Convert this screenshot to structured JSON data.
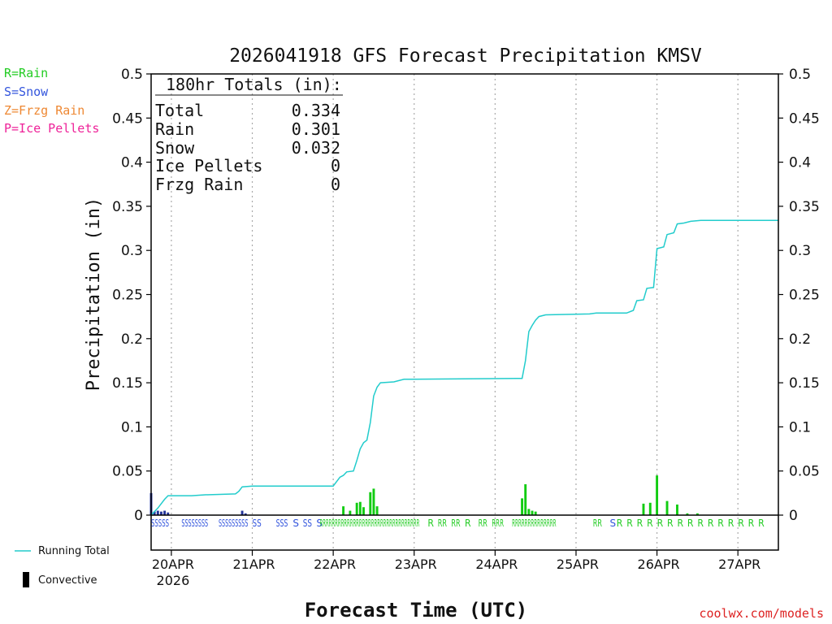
{
  "chart_data": {
    "type": "bar",
    "title": "2026041918 GFS Forecast Precipitation KMSV",
    "xlabel": "Forecast Time (UTC)",
    "ylabel": "Precipitation (in)",
    "ylim": [
      0,
      0.5
    ],
    "y_ticks": [
      "0",
      "0.05",
      "0.1",
      "0.15",
      "0.2",
      "0.25",
      "0.3",
      "0.35",
      "0.4",
      "0.45",
      "0.5"
    ],
    "x_range_hours": [
      0,
      186
    ],
    "x_ticks": [
      {
        "label": "20APR",
        "hour": 6,
        "sub": "2026"
      },
      {
        "label": "21APR",
        "hour": 30
      },
      {
        "label": "22APR",
        "hour": 54
      },
      {
        "label": "23APR",
        "hour": 78
      },
      {
        "label": "24APR",
        "hour": 102
      },
      {
        "label": "25APR",
        "hour": 126
      },
      {
        "label": "26APR",
        "hour": 150
      },
      {
        "label": "27APR",
        "hour": 174
      }
    ],
    "legend_types": [
      {
        "label": "R=Rain",
        "color": "#22cc22"
      },
      {
        "label": "S=Snow",
        "color": "#3355dd"
      },
      {
        "label": "Z=Frzg Rain",
        "color": "#ee8833"
      },
      {
        "label": "P=Ice Pellets",
        "color": "#ee2299"
      }
    ],
    "legend_lines": [
      {
        "label": "Running Total",
        "color": "#22cccc"
      },
      {
        "label": "Convective",
        "color": "#000000"
      }
    ],
    "totals_box": {
      "title": "180hr Totals (in):",
      "rows": [
        {
          "label": "Total",
          "value": "0.334"
        },
        {
          "label": "Rain",
          "value": "0.301"
        },
        {
          "label": "Snow",
          "value": "0.032"
        },
        {
          "label": "Ice Pellets",
          "value": "0"
        },
        {
          "label": "Frzg Rain",
          "value": "0"
        }
      ]
    },
    "series": [
      {
        "name": "Snow bars",
        "color": "#223399",
        "points": [
          [
            0,
            0.025
          ],
          [
            1,
            0.004
          ],
          [
            2,
            0.005
          ],
          [
            3,
            0.004
          ],
          [
            4,
            0.005
          ],
          [
            5,
            0.003
          ],
          [
            27,
            0.005
          ],
          [
            28,
            0.002
          ]
        ]
      },
      {
        "name": "Rain bars",
        "color": "#11cc11",
        "points": [
          [
            57,
            0.01
          ],
          [
            59,
            0.005
          ],
          [
            61,
            0.014
          ],
          [
            62,
            0.015
          ],
          [
            63,
            0.009
          ],
          [
            65,
            0.026
          ],
          [
            66,
            0.03
          ],
          [
            67,
            0.01
          ],
          [
            110,
            0.019
          ],
          [
            111,
            0.035
          ],
          [
            112,
            0.007
          ],
          [
            113,
            0.005
          ],
          [
            114,
            0.004
          ],
          [
            146,
            0.013
          ],
          [
            148,
            0.014
          ],
          [
            150,
            0.045
          ],
          [
            153,
            0.016
          ],
          [
            156,
            0.012
          ],
          [
            159,
            0.002
          ],
          [
            162,
            0.002
          ]
        ]
      },
      {
        "name": "Running Total",
        "color": "#22cccc",
        "points": [
          [
            0,
            0
          ],
          [
            2,
            0.008
          ],
          [
            4,
            0.018
          ],
          [
            5,
            0.022
          ],
          [
            12,
            0.022
          ],
          [
            16,
            0.023
          ],
          [
            25,
            0.024
          ],
          [
            26,
            0.027
          ],
          [
            27,
            0.032
          ],
          [
            30,
            0.033
          ],
          [
            54,
            0.033
          ],
          [
            56,
            0.043
          ],
          [
            57,
            0.045
          ],
          [
            58,
            0.049
          ],
          [
            60,
            0.05
          ],
          [
            61,
            0.062
          ],
          [
            62,
            0.075
          ],
          [
            63,
            0.082
          ],
          [
            64,
            0.085
          ],
          [
            65,
            0.105
          ],
          [
            66,
            0.135
          ],
          [
            67,
            0.145
          ],
          [
            68,
            0.15
          ],
          [
            72,
            0.151
          ],
          [
            75,
            0.154
          ],
          [
            110,
            0.155
          ],
          [
            111,
            0.175
          ],
          [
            112,
            0.208
          ],
          [
            113,
            0.215
          ],
          [
            114,
            0.221
          ],
          [
            115,
            0.225
          ],
          [
            117,
            0.227
          ],
          [
            130,
            0.228
          ],
          [
            132,
            0.229
          ],
          [
            141,
            0.229
          ],
          [
            143,
            0.232
          ],
          [
            144,
            0.243
          ],
          [
            146,
            0.244
          ],
          [
            147,
            0.257
          ],
          [
            149,
            0.258
          ],
          [
            150,
            0.302
          ],
          [
            152,
            0.304
          ],
          [
            153,
            0.318
          ],
          [
            155,
            0.32
          ],
          [
            156,
            0.33
          ],
          [
            158,
            0.331
          ],
          [
            160,
            0.333
          ],
          [
            163,
            0.334
          ],
          [
            186,
            0.334
          ]
        ]
      }
    ],
    "type_codes": [
      {
        "text": "SSSSS",
        "hour": 0,
        "kind": "S"
      },
      {
        "text": "SSSSSSSS",
        "hour": 9,
        "kind": "S"
      },
      {
        "text": "SSSSSSSSS",
        "hour": 20,
        "kind": "S"
      },
      {
        "text": "SS",
        "hour": 30,
        "kind": "S"
      },
      {
        "text": "SSS",
        "hour": 37,
        "kind": "S"
      },
      {
        "text": "S",
        "hour": 42,
        "kind": "S"
      },
      {
        "text": "SS",
        "hour": 45,
        "kind": "S"
      },
      {
        "text": "S",
        "hour": 49,
        "kind": "S"
      },
      {
        "text": "RRRRRRRRRRRRRRRRRRRRRRRRRRRRRRRRR",
        "hour": 50,
        "kind": "R"
      },
      {
        "text": "R",
        "hour": 82,
        "kind": "R"
      },
      {
        "text": "RR",
        "hour": 85,
        "kind": "R"
      },
      {
        "text": "RR",
        "hour": 89,
        "kind": "R"
      },
      {
        "text": "R",
        "hour": 93,
        "kind": "R"
      },
      {
        "text": "RR",
        "hour": 97,
        "kind": "R"
      },
      {
        "text": "RRR",
        "hour": 101,
        "kind": "R"
      },
      {
        "text": "RRRRRRRRRRRRRR",
        "hour": 107,
        "kind": "R"
      },
      {
        "text": "RR",
        "hour": 131,
        "kind": "R"
      },
      {
        "text": "S",
        "hour": 136,
        "kind": "S"
      },
      {
        "text": "R",
        "hour": 138,
        "kind": "R"
      },
      {
        "text": "R",
        "hour": 141,
        "kind": "R"
      },
      {
        "text": "R",
        "hour": 144,
        "kind": "R"
      },
      {
        "text": "R",
        "hour": 147,
        "kind": "R"
      },
      {
        "text": "R",
        "hour": 150,
        "kind": "R"
      },
      {
        "text": "R",
        "hour": 153,
        "kind": "R"
      },
      {
        "text": "R",
        "hour": 156,
        "kind": "R"
      },
      {
        "text": "R",
        "hour": 159,
        "kind": "R"
      },
      {
        "text": "R",
        "hour": 162,
        "kind": "R"
      },
      {
        "text": "R",
        "hour": 165,
        "kind": "R"
      },
      {
        "text": "R",
        "hour": 168,
        "kind": "R"
      },
      {
        "text": "R",
        "hour": 171,
        "kind": "R"
      },
      {
        "text": "R",
        "hour": 174,
        "kind": "R"
      },
      {
        "text": "R",
        "hour": 177,
        "kind": "R"
      },
      {
        "text": "R",
        "hour": 180,
        "kind": "R"
      }
    ],
    "type_code_colors": {
      "S": "#3355dd",
      "R": "#22cc22"
    },
    "credit": "coolwx.com/models"
  }
}
